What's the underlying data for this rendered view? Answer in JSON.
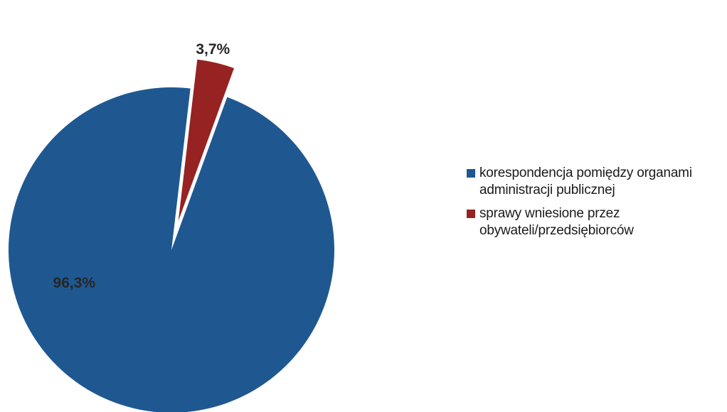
{
  "chart_data": {
    "type": "pie",
    "title": "",
    "slices": [
      {
        "label": "korespondencja pomiędzy organami\nadministracji publicznej",
        "value": 96.3,
        "display": "96,3%",
        "color": "#1f5891",
        "exploded": false
      },
      {
        "label": "sprawy wniesione przez\nobywateli/przedsiębiorców",
        "value": 3.7,
        "display": "3,7%",
        "color": "#962222",
        "exploded": true
      }
    ],
    "legend_position": "right",
    "data_labels": true
  }
}
